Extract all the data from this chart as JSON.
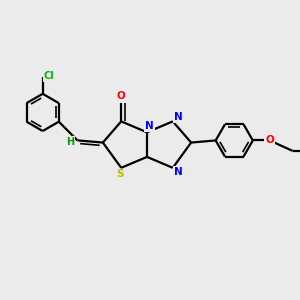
{
  "background_color": "#ebebeb",
  "bond_color": "#000000",
  "atom_colors": {
    "N": "#0000ff",
    "O": "#ff0000",
    "S": "#bbbb00",
    "Cl": "#00bb00",
    "H": "#009900",
    "C": "#000000"
  },
  "figsize": [
    3.0,
    3.0
  ],
  "dpi": 100
}
